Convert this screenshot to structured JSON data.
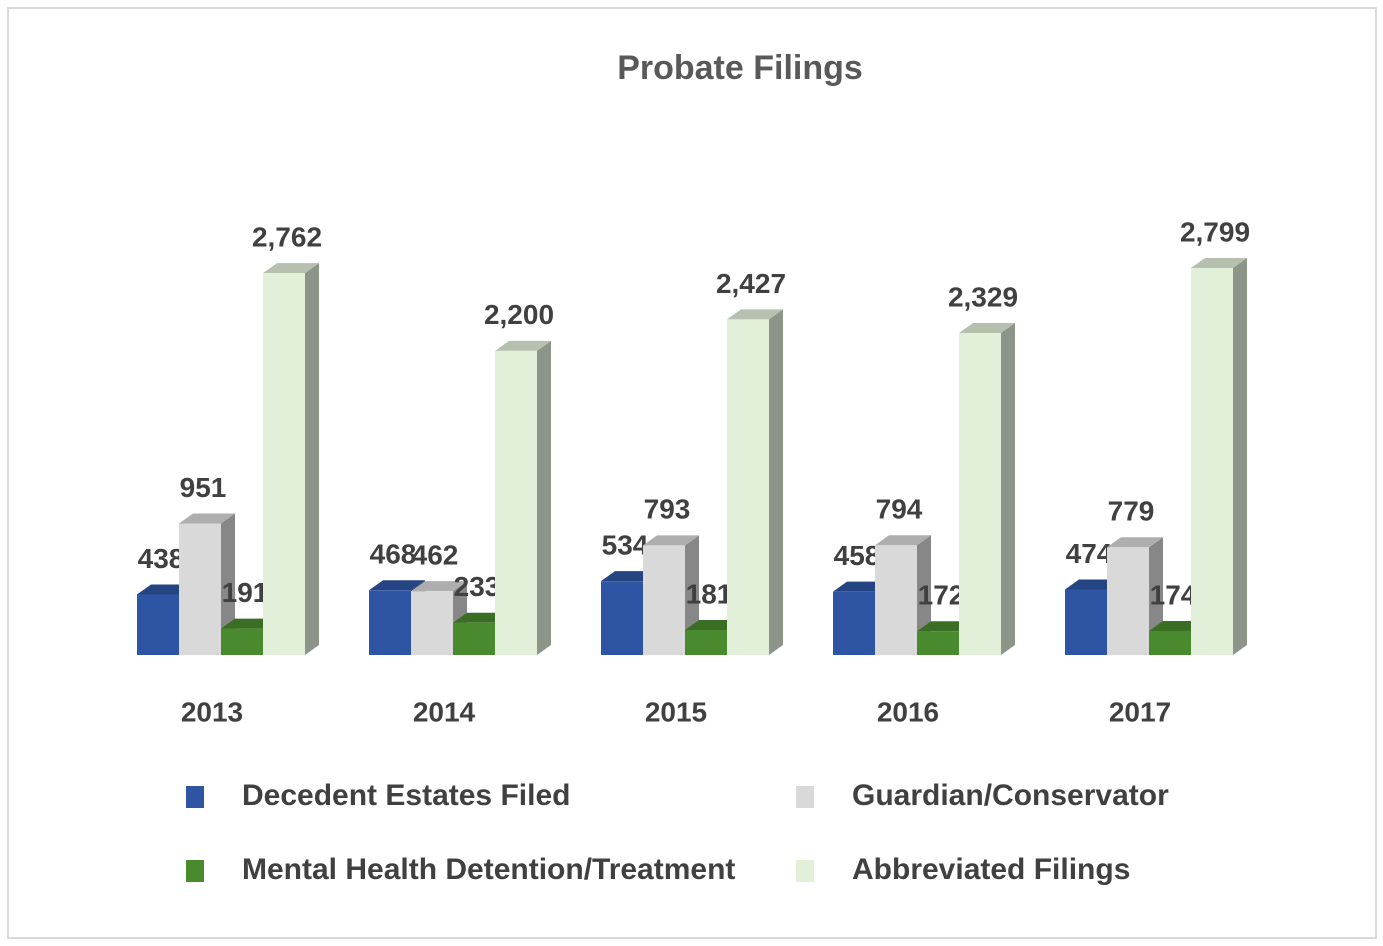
{
  "chart_data": {
    "type": "bar3d",
    "title": "Probate Filings",
    "categories": [
      "2013",
      "2014",
      "2015",
      "2016",
      "2017"
    ],
    "series": [
      {
        "name": "Decedent Estates Filed",
        "color": "#2e55a3",
        "values": [
          438,
          468,
          534,
          458,
          474
        ]
      },
      {
        "name": "Guardian/Conservator",
        "color": "#d9d9d9",
        "values": [
          951,
          462,
          793,
          794,
          779
        ]
      },
      {
        "name": "Mental Health Detention/Treatment",
        "color": "#4a8a2e",
        "values": [
          191,
          233,
          181,
          172,
          174
        ]
      },
      {
        "name": "Abbreviated Filings",
        "color": "#e2f0d9",
        "values": [
          2762,
          2200,
          2427,
          2329,
          2799
        ],
        "value_labels": [
          "2,762",
          "2,200",
          "2,427",
          "2,329",
          "2,799"
        ]
      }
    ],
    "legend": "bottom"
  }
}
